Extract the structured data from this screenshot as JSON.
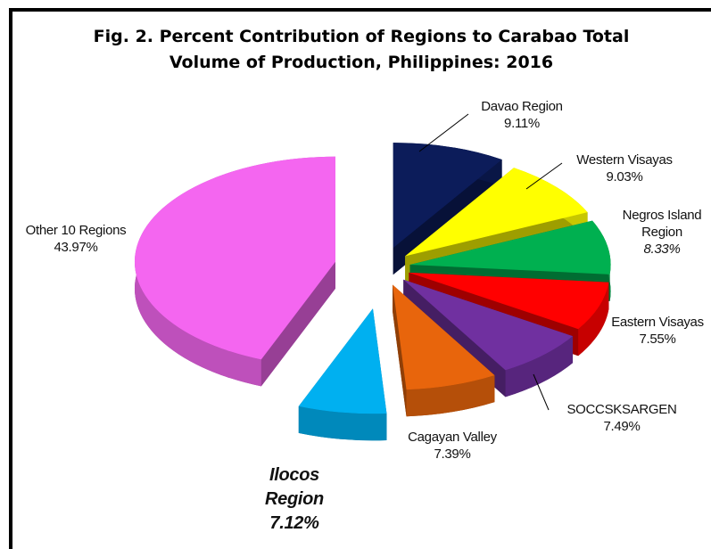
{
  "chart_data": {
    "type": "pie",
    "title": [
      "Fig. 2.  Percent Contribution of Regions to Carabao  Total",
      "Volume of Production, Philippines: 2016"
    ],
    "categories": [
      "Davao Region",
      "Western Visayas",
      "Negros Island Region",
      "Eastern Visayas",
      "SOCCSKSARGEN",
      "Cagayan Valley",
      "Ilocos Region",
      "Other 10 Regions"
    ],
    "values": [
      9.11,
      9.03,
      8.33,
      7.55,
      7.49,
      7.39,
      7.12,
      43.97
    ],
    "value_labels": [
      "9.11%",
      "9.03%",
      "8.33%",
      "7.55%",
      "7.49%",
      "7.39%",
      "7.12%",
      "43.97%"
    ],
    "colors": [
      "#0c1c5a",
      "#ffff00",
      "#00b050",
      "#ff0000",
      "#7030a0",
      "#e8650c",
      "#00b0f0",
      "#f466f0"
    ]
  }
}
